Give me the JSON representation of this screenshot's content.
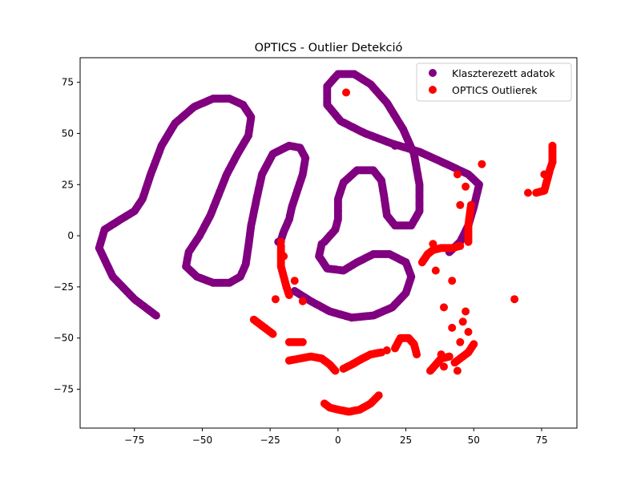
{
  "chart_data": {
    "type": "scatter",
    "title": "OPTICS - Outlier Detekció",
    "xlabel": "",
    "ylabel": "",
    "xlim": [
      -95,
      88
    ],
    "ylim": [
      -94,
      87
    ],
    "xticks": [
      -75,
      -50,
      -25,
      0,
      25,
      50,
      75
    ],
    "yticks": [
      -75,
      -50,
      -25,
      0,
      25,
      50,
      75
    ],
    "xtick_labels": [
      "−75",
      "−50",
      "−25",
      "0",
      "25",
      "50",
      "75"
    ],
    "ytick_labels": [
      "−75",
      "−50",
      "−25",
      "0",
      "25",
      "50",
      "75"
    ],
    "grid": false,
    "legend_position": "top-right",
    "series": [
      {
        "name": "Klaszterezett adatok",
        "color": "#800080",
        "curves": [
          [
            [
              -67,
              -39
            ],
            [
              -75,
              -31
            ],
            [
              -83,
              -20
            ],
            [
              -88,
              -6
            ],
            [
              -86,
              3
            ],
            [
              -80,
              8
            ],
            [
              -75,
              12
            ],
            [
              -72,
              18
            ],
            [
              -69,
              30
            ],
            [
              -65,
              44
            ],
            [
              -60,
              55
            ],
            [
              -53,
              63
            ],
            [
              -46,
              67
            ],
            [
              -40,
              67
            ],
            [
              -35,
              64
            ],
            [
              -32,
              58
            ],
            [
              -33,
              49
            ],
            [
              -37,
              40
            ],
            [
              -41,
              30
            ],
            [
              -44,
              20
            ],
            [
              -47,
              10
            ],
            [
              -51,
              0
            ],
            [
              -55,
              -8
            ],
            [
              -56,
              -15
            ],
            [
              -52,
              -20
            ],
            [
              -46,
              -23
            ],
            [
              -40,
              -23
            ],
            [
              -36,
              -20
            ],
            [
              -34,
              -14
            ],
            [
              -33,
              -5
            ],
            [
              -32,
              5
            ],
            [
              -30,
              18
            ],
            [
              -28,
              30
            ],
            [
              -24,
              40
            ],
            [
              -18,
              44
            ],
            [
              -14,
              43
            ],
            [
              -12,
              38
            ],
            [
              -13,
              30
            ],
            [
              -15,
              22
            ],
            [
              -17,
              14
            ],
            [
              -18,
              8
            ],
            [
              -20,
              2
            ],
            [
              -21,
              -2
            ]
          ],
          [
            [
              -5,
              -3
            ],
            [
              -1,
              3
            ],
            [
              0,
              8
            ],
            [
              0,
              18
            ],
            [
              2,
              26
            ],
            [
              7,
              32
            ],
            [
              13,
              32
            ],
            [
              16,
              27
            ],
            [
              17,
              19
            ],
            [
              18,
              10
            ],
            [
              21,
              5
            ],
            [
              27,
              5
            ],
            [
              30,
              12
            ],
            [
              30,
              25
            ],
            [
              28,
              40
            ],
            [
              24,
              52
            ],
            [
              18,
              65
            ],
            [
              12,
              74
            ],
            [
              6,
              79
            ],
            [
              0,
              79
            ],
            [
              -4,
              73
            ],
            [
              -4,
              64
            ],
            [
              1,
              56
            ],
            [
              10,
              50
            ],
            [
              20,
              45
            ],
            [
              30,
              41
            ],
            [
              40,
              35
            ],
            [
              48,
              30
            ],
            [
              52,
              25
            ],
            [
              50,
              14
            ],
            [
              48,
              5
            ],
            [
              45,
              -3
            ],
            [
              41,
              -8
            ]
          ],
          [
            [
              -16,
              -27
            ],
            [
              -10,
              -32
            ],
            [
              -3,
              -37
            ],
            [
              5,
              -40
            ],
            [
              13,
              -39
            ],
            [
              20,
              -35
            ],
            [
              25,
              -28
            ],
            [
              27,
              -20
            ],
            [
              25,
              -13
            ],
            [
              19,
              -9
            ],
            [
              13,
              -9
            ],
            [
              7,
              -13
            ],
            [
              2,
              -17
            ],
            [
              -4,
              -16
            ],
            [
              -7,
              -10
            ],
            [
              -6,
              -4
            ]
          ]
        ],
        "points": [
          [
            0,
            12
          ],
          [
            21,
            44
          ],
          [
            -22,
            -3
          ]
        ]
      },
      {
        "name": "OPTICS Outlierek",
        "color": "#ff0000",
        "curves": [
          [
            [
              -21,
              -5
            ],
            [
              -21,
              -10
            ],
            [
              -21,
              -15
            ],
            [
              -20,
              -20
            ],
            [
              -19,
              -25
            ],
            [
              -18,
              -29
            ]
          ],
          [
            [
              -31,
              -41
            ],
            [
              -28,
              -44
            ],
            [
              -26,
              -46
            ],
            [
              -24,
              -48
            ]
          ],
          [
            [
              -18,
              -52
            ],
            [
              -16,
              -52
            ],
            [
              -14,
              -52
            ]
          ],
          [
            [
              -18,
              -61
            ],
            [
              -14,
              -60
            ],
            [
              -10,
              -59
            ],
            [
              -6,
              -60
            ],
            [
              -3,
              -63
            ],
            [
              -1,
              -66
            ]
          ],
          [
            [
              -5,
              -82
            ],
            [
              -3,
              -84
            ],
            [
              0,
              -85
            ],
            [
              4,
              -86
            ],
            [
              8,
              -85
            ],
            [
              12,
              -82
            ],
            [
              15,
              -78
            ]
          ],
          [
            [
              2,
              -65
            ],
            [
              5,
              -63
            ],
            [
              9,
              -60
            ],
            [
              12,
              -58
            ],
            [
              16,
              -57
            ]
          ],
          [
            [
              21,
              -55
            ],
            [
              23,
              -50
            ],
            [
              26,
              -50
            ],
            [
              28,
              -53
            ],
            [
              29,
              -58
            ]
          ],
          [
            [
              31,
              -13
            ],
            [
              33,
              -9
            ],
            [
              35,
              -7
            ],
            [
              38,
              -6
            ],
            [
              42,
              -6
            ],
            [
              45,
              -5
            ]
          ],
          [
            [
              48,
              -3
            ],
            [
              48,
              5
            ],
            [
              49,
              15
            ]
          ],
          [
            [
              34,
              -66
            ],
            [
              36,
              -63
            ],
            [
              38,
              -60
            ],
            [
              41,
              -59
            ]
          ],
          [
            [
              43,
              -62
            ],
            [
              46,
              -59
            ],
            [
              48,
              -57
            ],
            [
              50,
              -53
            ]
          ],
          [
            [
              73,
              21
            ],
            [
              76,
              22
            ],
            [
              77,
              27
            ],
            [
              78,
              32
            ],
            [
              79,
              36
            ],
            [
              79,
              40
            ],
            [
              79,
              44
            ]
          ]
        ],
        "points": [
          [
            -16,
            -22
          ],
          [
            -13,
            -32
          ],
          [
            3,
            70
          ],
          [
            44,
            30
          ],
          [
            47,
            24
          ],
          [
            45,
            15
          ],
          [
            35,
            -4
          ],
          [
            36,
            -17
          ],
          [
            42,
            -22
          ],
          [
            39,
            -35
          ],
          [
            47,
            -37
          ],
          [
            46,
            -42
          ],
          [
            42,
            -45
          ],
          [
            48,
            -47
          ],
          [
            45,
            -52
          ],
          [
            38,
            -58
          ],
          [
            39,
            -64
          ],
          [
            44,
            -66
          ],
          [
            53,
            35
          ],
          [
            65,
            -31
          ],
          [
            79,
            36
          ],
          [
            76,
            30
          ],
          [
            70,
            21
          ],
          [
            -20,
            -10
          ],
          [
            -21,
            -3
          ],
          [
            -28,
            -44
          ],
          [
            -13,
            -52
          ],
          [
            18,
            -56
          ],
          [
            -23,
            -31
          ]
        ]
      }
    ]
  }
}
